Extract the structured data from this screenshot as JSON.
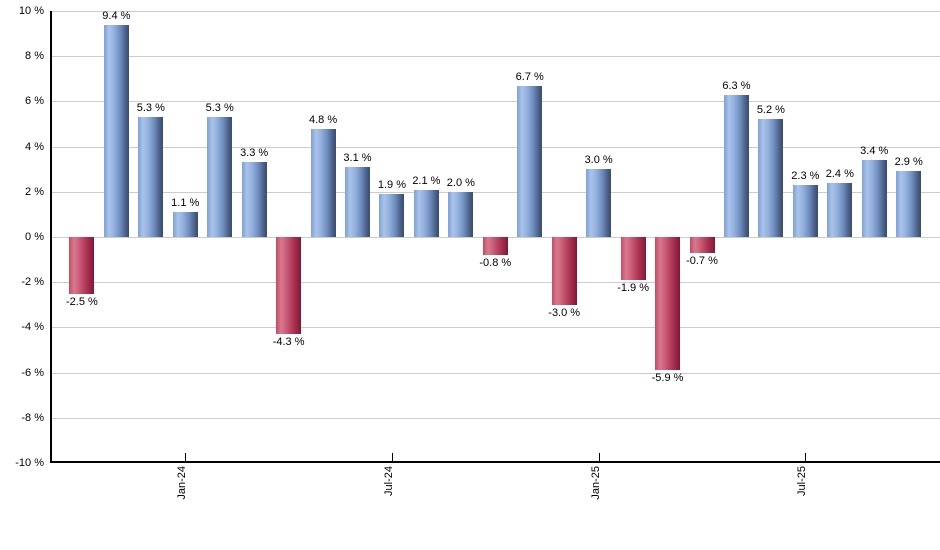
{
  "chart_data": {
    "type": "bar",
    "title": "",
    "xlabel": "",
    "ylabel": "",
    "ylim": [
      -10,
      10
    ],
    "y_tick_step": 2,
    "grid": true,
    "legend": "none",
    "values": [
      -2.5,
      9.4,
      5.3,
      1.1,
      5.3,
      3.3,
      -4.3,
      4.8,
      3.1,
      1.9,
      2.1,
      2.0,
      -0.8,
      6.7,
      -3.0,
      3.0,
      -1.9,
      -5.9,
      -0.7,
      6.3,
      5.2,
      2.3,
      2.4,
      3.4,
      2.9
    ],
    "bar_labels": [
      "-2.5 %",
      "9.4 %",
      "5.3 %",
      "1.1 %",
      "5.3 %",
      "3.3 %",
      "-4.3 %",
      "4.8 %",
      "3.1 %",
      "1.9 %",
      "2.1 %",
      "2.0 %",
      "-0.8 %",
      "6.7 %",
      "-3.0 %",
      "3.0 %",
      "-1.9 %",
      "-5.9 %",
      "-0.7 %",
      "6.3 %",
      "5.2 %",
      "2.3 %",
      "2.4 %",
      "3.4 %",
      "2.9 %"
    ],
    "y_tick_labels": [
      "10 %",
      "8 %",
      "6 %",
      "4 %",
      "2 %",
      "0 %",
      "-2 %",
      "-4 %",
      "-6 %",
      "-8 %",
      "-10 %"
    ],
    "y_tick_values": [
      10,
      8,
      6,
      4,
      2,
      0,
      -2,
      -4,
      -6,
      -8,
      -10
    ],
    "x_ticks": [
      {
        "bar_index": 3,
        "label": "Jan-24"
      },
      {
        "bar_index": 9,
        "label": "Jul-24"
      },
      {
        "bar_index": 15,
        "label": "Jan-25"
      },
      {
        "bar_index": 21,
        "label": "Jul-25"
      }
    ],
    "colors": {
      "positive_bar": "#6f92c6",
      "positive_bar_highlight": "#a9c3eb",
      "positive_bar_shadow": "#394e71",
      "negative_bar": "#bb3f5c",
      "negative_bar_highlight": "#d8798f",
      "negative_bar_shadow": "#7d1734",
      "gridline": "#cccccc",
      "axis": "#000000",
      "label_text": "#000000",
      "background": "#ffffff"
    }
  }
}
